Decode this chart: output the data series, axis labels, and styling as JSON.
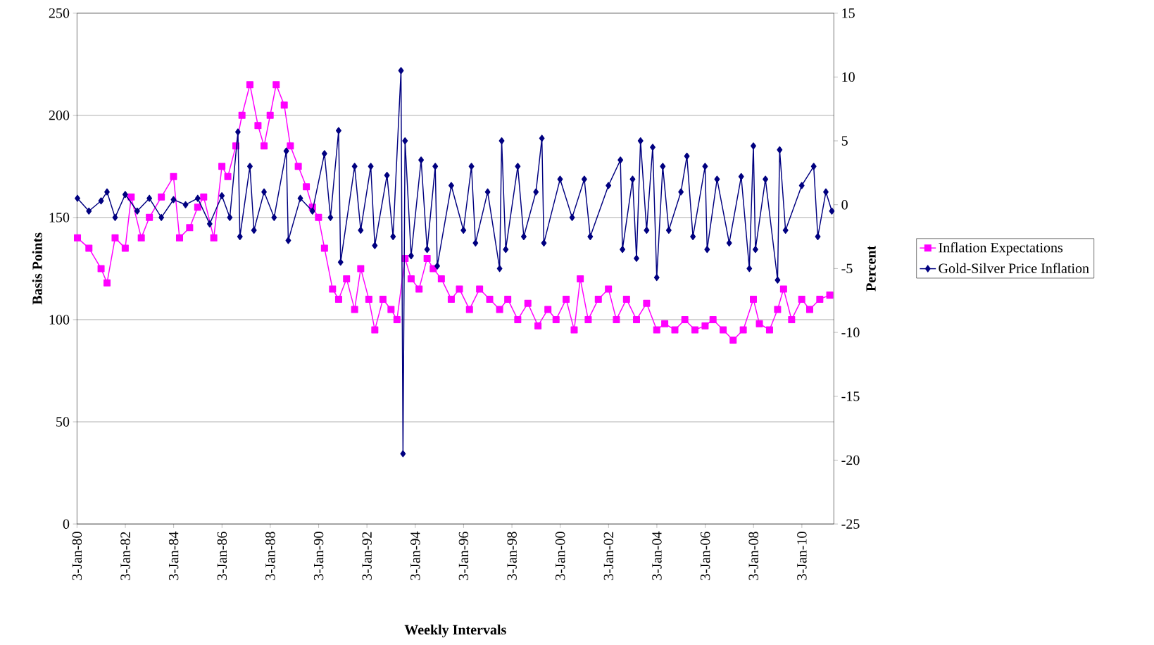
{
  "chart_data": {
    "type": "line",
    "xlabel": "Weekly Intervals",
    "ylabel": "Basis Points",
    "y2label": "Percent",
    "xlim": [
      "1980-01-03",
      "2011-05"
    ],
    "xticks": [
      {
        "value": "1980-01-03",
        "label": "3-Jan-80"
      },
      {
        "value": "1982-01-03",
        "label": "3-Jan-82"
      },
      {
        "value": "1984-01-03",
        "label": "3-Jan-84"
      },
      {
        "value": "1986-01-03",
        "label": "3-Jan-86"
      },
      {
        "value": "1988-01-03",
        "label": "3-Jan-88"
      },
      {
        "value": "1990-01-03",
        "label": "3-Jan-90"
      },
      {
        "value": "1992-01-03",
        "label": "3-Jan-92"
      },
      {
        "value": "1994-01-03",
        "label": "3-Jan-94"
      },
      {
        "value": "1996-01-03",
        "label": "3-Jan-96"
      },
      {
        "value": "1998-01-03",
        "label": "3-Jan-98"
      },
      {
        "value": "2000-01-03",
        "label": "3-Jan-00"
      },
      {
        "value": "2002-01-03",
        "label": "3-Jan-02"
      },
      {
        "value": "2004-01-03",
        "label": "3-Jan-04"
      },
      {
        "value": "2006-01-03",
        "label": "3-Jan-06"
      },
      {
        "value": "2008-01-03",
        "label": "3-Jan-08"
      },
      {
        "value": "2010-01-03",
        "label": "3-Jan-10"
      }
    ],
    "ylim": [
      0,
      250
    ],
    "yticks": [
      0,
      50,
      100,
      150,
      200,
      250
    ],
    "y2lim": [
      -25,
      15
    ],
    "y2ticks": [
      -25,
      -20,
      -15,
      -10,
      -5,
      0,
      5,
      10,
      15
    ],
    "grid": "y",
    "legend": "right",
    "line_style": "solid",
    "series": [
      {
        "name": "Inflation Expectations",
        "color": "#ff00ff",
        "marker": "square",
        "x": [
          "1980-01-10",
          "1980-07",
          "1981-01",
          "1981-04",
          "1981-08",
          "1982-01",
          "1982-04",
          "1982-09",
          "1983-01",
          "1983-07",
          "1984-01",
          "1984-04",
          "1984-09",
          "1985-01",
          "1985-04",
          "1985-09",
          "1986-01",
          "1986-04",
          "1986-08",
          "1986-11",
          "1987-03",
          "1987-07",
          "1987-10",
          "1988-01",
          "1988-04",
          "1988-08",
          "1988-11",
          "1989-03",
          "1989-07",
          "1989-10",
          "1990-01",
          "1990-04",
          "1990-08",
          "1990-11",
          "1991-03",
          "1991-07",
          "1991-10",
          "1992-02",
          "1992-05",
          "1992-09",
          "1993-01",
          "1993-04",
          "1993-08",
          "1993-11",
          "1994-03",
          "1994-07",
          "1994-10",
          "1995-02",
          "1995-07",
          "1995-11",
          "1996-04",
          "1996-09",
          "1997-02",
          "1997-07",
          "1997-11",
          "1998-04",
          "1998-09",
          "1999-02",
          "1999-07",
          "1999-11",
          "2000-04",
          "2000-08",
          "2000-11",
          "2001-03",
          "2001-08",
          "2002-01",
          "2002-05",
          "2002-10",
          "2003-03",
          "2003-08",
          "2004-01",
          "2004-05",
          "2004-10",
          "2005-03",
          "2005-08",
          "2006-01",
          "2006-05",
          "2006-10",
          "2007-03",
          "2007-08",
          "2008-01",
          "2008-04",
          "2008-09",
          "2009-01",
          "2009-04",
          "2009-08",
          "2010-01",
          "2010-05",
          "2010-10",
          "2011-03"
        ],
        "values": [
          140,
          135,
          125,
          118,
          140,
          135,
          160,
          140,
          150,
          160,
          170,
          140,
          145,
          155,
          160,
          140,
          175,
          170,
          185,
          200,
          215,
          195,
          185,
          200,
          215,
          205,
          185,
          175,
          165,
          155,
          150,
          135,
          115,
          110,
          120,
          105,
          125,
          110,
          95,
          110,
          105,
          100,
          130,
          120,
          115,
          130,
          125,
          120,
          110,
          115,
          105,
          115,
          110,
          105,
          110,
          100,
          108,
          97,
          105,
          100,
          110,
          95,
          120,
          100,
          110,
          115,
          100,
          110,
          100,
          108,
          95,
          98,
          95,
          100,
          95,
          97,
          100,
          95,
          90,
          95,
          110,
          98,
          95,
          105,
          115,
          100,
          110,
          105,
          110,
          112
        ]
      },
      {
        "name": "Gold-Silver Price Inflation",
        "color": "#000080",
        "marker": "diamond",
        "axis": "y2",
        "x": [
          "1980-01-10",
          "1980-07",
          "1981-01",
          "1981-04",
          "1981-08",
          "1982-01",
          "1982-07",
          "1983-01",
          "1983-07",
          "1984-01",
          "1984-07",
          "1985-01",
          "1985-07",
          "1986-01",
          "1986-05",
          "1986-09",
          "1986-10",
          "1987-03",
          "1987-05",
          "1987-10",
          "1988-03",
          "1988-09",
          "1988-10",
          "1989-04",
          "1989-10",
          "1990-04",
          "1990-07",
          "1990-11",
          "1990-12",
          "1991-07",
          "1991-10",
          "1992-03",
          "1992-05",
          "1992-11",
          "1993-02",
          "1993-06",
          "1993-07",
          "1993-08",
          "1993-11",
          "1994-04",
          "1994-07",
          "1994-11",
          "1994-12",
          "1995-07",
          "1996-01",
          "1996-05",
          "1996-07",
          "1997-01",
          "1997-07",
          "1997-08",
          "1997-10",
          "1998-04",
          "1998-07",
          "1999-01",
          "1999-04",
          "1999-05",
          "2000-01",
          "2000-07",
          "2001-01",
          "2001-04",
          "2002-01",
          "2002-07",
          "2002-08",
          "2003-01",
          "2003-03",
          "2003-05",
          "2003-08",
          "2003-11",
          "2004-01",
          "2004-04",
          "2004-07",
          "2005-01",
          "2005-04",
          "2005-07",
          "2006-01",
          "2006-02",
          "2006-07",
          "2007-01",
          "2007-07",
          "2007-11",
          "2008-01",
          "2008-02",
          "2008-07",
          "2009-01",
          "2009-02",
          "2009-05",
          "2010-01",
          "2010-07",
          "2010-09",
          "2011-01",
          "2011-04"
        ],
        "values": [
          0.5,
          -0.5,
          0.3,
          1,
          -1,
          0.8,
          -0.5,
          0.5,
          -1,
          0.4,
          0,
          0.5,
          -1.5,
          0.7,
          -1,
          5.7,
          -2.5,
          3,
          -2,
          1,
          -1,
          4.2,
          -2.8,
          0.5,
          -0.5,
          4,
          -1,
          5.8,
          -4.5,
          3,
          -2,
          3,
          -3.2,
          2.3,
          -2.5,
          10.5,
          -19.5,
          5,
          -4,
          3.5,
          -3.5,
          3,
          -4.8,
          1.5,
          -2,
          3,
          -3,
          1,
          -5,
          5,
          -3.5,
          3,
          -2.5,
          1,
          5.2,
          -3,
          2,
          -1,
          2,
          -2.5,
          1.5,
          3.5,
          -3.5,
          2,
          -4.2,
          5,
          -2,
          4.5,
          -5.7,
          3,
          -2,
          1,
          3.8,
          -2.5,
          3,
          -3.5,
          2,
          -3,
          2.2,
          -5,
          4.6,
          -3.5,
          2,
          -5.9,
          4.3,
          -2,
          1.5,
          3,
          -2.5,
          1,
          -0.5
        ]
      }
    ]
  }
}
